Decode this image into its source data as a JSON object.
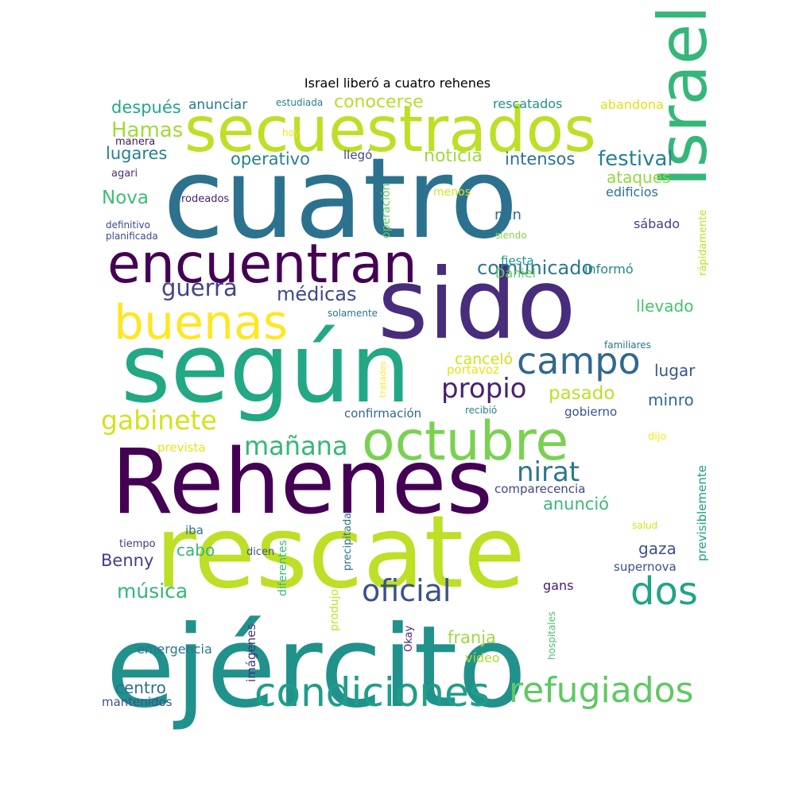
{
  "title": "Israel liberó a cuatro rehenes",
  "words": [
    {
      "text": "cuatro",
      "color": "#2c728e"
    },
    {
      "text": "según",
      "color": "#22a884"
    },
    {
      "text": "sido",
      "color": "#472d7b"
    },
    {
      "text": "Rehenes",
      "color": "#440154"
    },
    {
      "text": "ejército",
      "color": "#21918c"
    },
    {
      "text": "rescate",
      "color": "#bddf26"
    },
    {
      "text": "Israel",
      "color": "#35b779"
    },
    {
      "text": "secuestrados",
      "color": "#bddf26"
    },
    {
      "text": "encuentran",
      "color": "#440154"
    },
    {
      "text": "octubre",
      "color": "#7ad151"
    },
    {
      "text": "buenas",
      "color": "#fde725"
    },
    {
      "text": "condiciones",
      "color": "#1f9e89"
    },
    {
      "text": "refugiados",
      "color": "#5ec962"
    },
    {
      "text": "campo",
      "color": "#31688e"
    },
    {
      "text": "dos",
      "color": "#20a486"
    },
    {
      "text": "oficial",
      "color": "#3b528b"
    },
    {
      "text": "gabinete",
      "color": "#d2e21b"
    },
    {
      "text": "propio",
      "color": "#482173"
    },
    {
      "text": "mañana",
      "color": "#35b779"
    },
    {
      "text": "nirat",
      "color": "#2a788e"
    },
    {
      "text": "guerra",
      "color": "#414487"
    },
    {
      "text": "festival",
      "color": "#26828e"
    },
    {
      "text": "Hamas",
      "color": "#a0da39"
    },
    {
      "text": "música",
      "color": "#35b779"
    },
    {
      "text": "médicas",
      "color": "#3e4989"
    },
    {
      "text": "comunicado",
      "color": "#2a788e"
    },
    {
      "text": "pasado",
      "color": "#bddf26"
    },
    {
      "text": "Nova",
      "color": "#3dbc74"
    },
    {
      "text": "noticia",
      "color": "#9fda3a"
    },
    {
      "text": "conocerse",
      "color": "#b5de2b"
    },
    {
      "text": "intensos",
      "color": "#2c728e"
    },
    {
      "text": "operativo",
      "color": "#26828e"
    },
    {
      "text": "después",
      "color": "#22a884"
    },
    {
      "text": "lugares",
      "color": "#277f8e"
    },
    {
      "text": "anunció",
      "color": "#3aba76"
    },
    {
      "text": "centro",
      "color": "#2d708e"
    },
    {
      "text": "franja",
      "color": "#9dd93b"
    },
    {
      "text": "Benny",
      "color": "#433e85"
    },
    {
      "text": "cabo",
      "color": "#38b977"
    },
    {
      "text": "gaza",
      "color": "#3b528b"
    },
    {
      "text": "ataques",
      "color": "#93d741"
    },
    {
      "text": "llevado",
      "color": "#4ac16d"
    },
    {
      "text": "lugar",
      "color": "#39568c"
    },
    {
      "text": "minro",
      "color": "#31688e"
    },
    {
      "text": "canceló",
      "color": "#d2e21b"
    },
    {
      "text": "min",
      "color": "#2e6e8e"
    },
    {
      "text": "anunciar",
      "color": "#2a788e"
    },
    {
      "text": "rescatados",
      "color": "#21918c"
    },
    {
      "text": "abandona",
      "color": "#dde318"
    },
    {
      "text": "edificios",
      "color": "#2c728e"
    },
    {
      "text": "sábado",
      "color": "#433e85"
    },
    {
      "text": "fiesta",
      "color": "#1f968b"
    },
    {
      "text": "informó",
      "color": "#24868e"
    },
    {
      "text": "Daniel",
      "color": "#63cb5f"
    },
    {
      "text": "gobierno",
      "color": "#3b528b"
    },
    {
      "text": "confirmación",
      "color": "#31688e"
    },
    {
      "text": "comparecencia",
      "color": "#3f4788"
    },
    {
      "text": "emergencia",
      "color": "#2a788e"
    },
    {
      "text": "mantenidos",
      "color": "#3b528b"
    },
    {
      "text": "vídeo",
      "color": "#addc30"
    },
    {
      "text": "gans",
      "color": "#481b6d"
    },
    {
      "text": "supernova",
      "color": "#3b528b"
    },
    {
      "text": "llegó",
      "color": "#3e4a89"
    },
    {
      "text": "Okay",
      "color": "#482878"
    },
    {
      "text": "iba",
      "color": "#2c728e"
    },
    {
      "text": "portavoz",
      "color": "#e5e419"
    },
    {
      "text": "prevista",
      "color": "#e5e419"
    },
    {
      "text": "tiempo",
      "color": "#453882"
    },
    {
      "text": "dicen",
      "color": "#3b528b"
    },
    {
      "text": "salud",
      "color": "#d5e21a"
    },
    {
      "text": "dijo",
      "color": "#fde725"
    },
    {
      "text": "recibió",
      "color": "#26828e"
    },
    {
      "text": "familiares",
      "color": "#2c728e"
    },
    {
      "text": "solamente",
      "color": "#2c728e"
    },
    {
      "text": "siendo",
      "color": "#84d44b"
    },
    {
      "text": "menos",
      "color": "#d2e21b"
    },
    {
      "text": "rodeados",
      "color": "#481f70"
    },
    {
      "text": "hoy",
      "color": "#f1e51d"
    },
    {
      "text": "manera",
      "color": "#481467"
    },
    {
      "text": "agari",
      "color": "#46337e"
    },
    {
      "text": "definitivo",
      "color": "#3e4989"
    },
    {
      "text": "planificada",
      "color": "#3e4989"
    },
    {
      "text": "estudiada",
      "color": "#277f8e"
    },
    {
      "text": "operación",
      "color": "#63cb5f"
    },
    {
      "text": "rápidamente",
      "color": "#bddf26"
    },
    {
      "text": "previsiblemente",
      "color": "#1f9a8a"
    },
    {
      "text": "tratados",
      "color": "#fde725"
    },
    {
      "text": "precipitada",
      "color": "#2c728e"
    },
    {
      "text": "produjo",
      "color": "#c2df23"
    },
    {
      "text": "diferentes",
      "color": "#3aba76"
    },
    {
      "text": "imágenes",
      "color": "#46327e"
    },
    {
      "text": "hospitales",
      "color": "#48c16e"
    }
  ]
}
